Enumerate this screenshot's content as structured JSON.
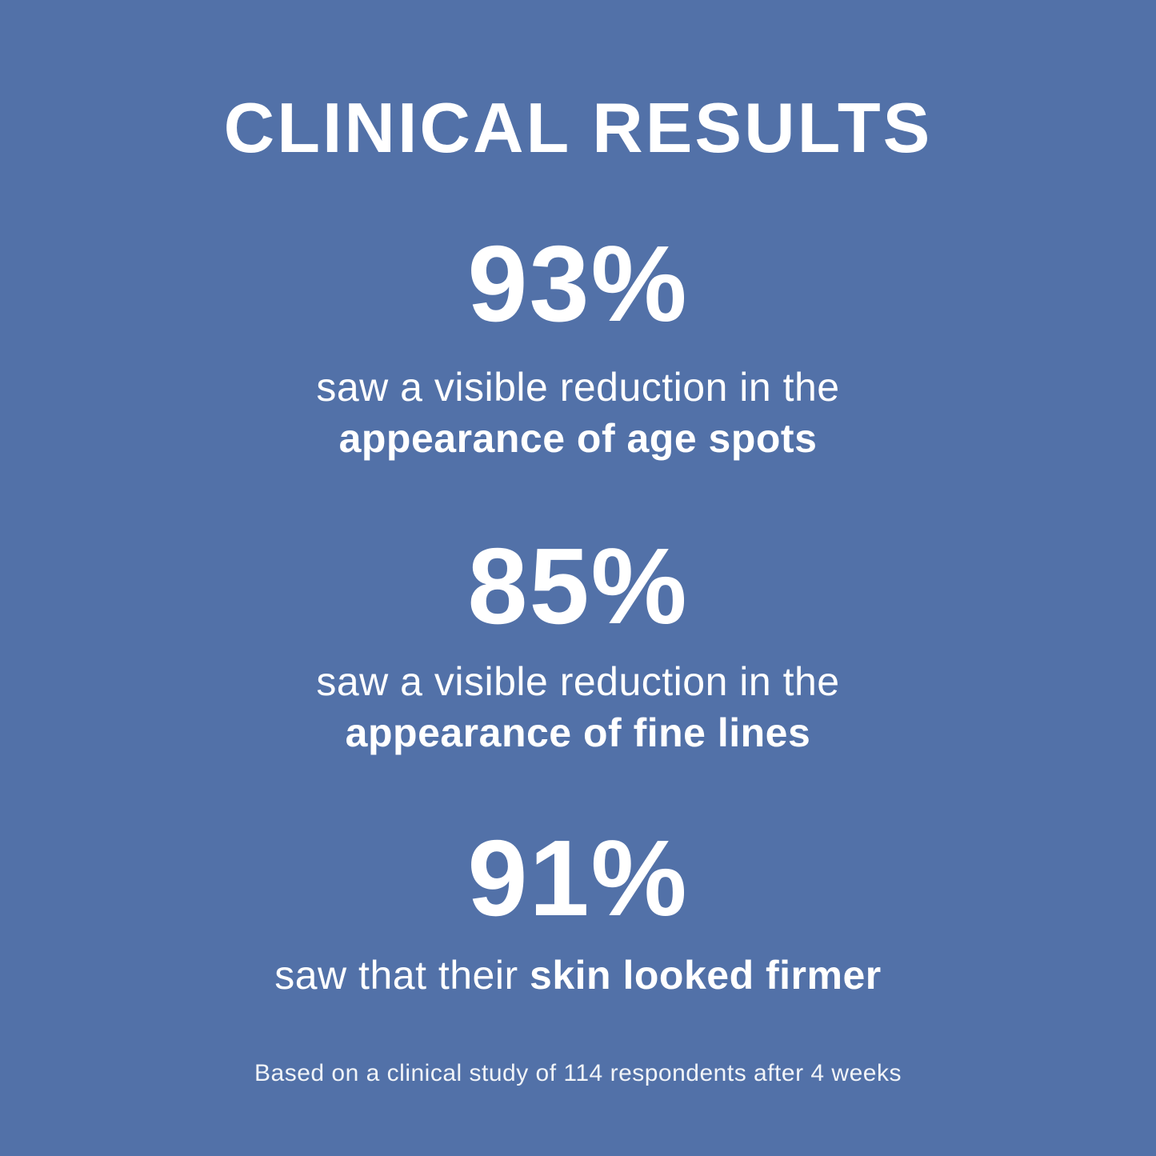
{
  "canvas": {
    "background_color": "#5271A8",
    "text_color": "#FFFFFF"
  },
  "title": "CLINICAL RESULTS",
  "stats": [
    {
      "value": "93%",
      "description_regular": "saw a visible reduction in the",
      "description_bold": "appearance of age spots"
    },
    {
      "value": "85%",
      "description_regular": "saw a visible reduction in the",
      "description_bold": "appearance of fine lines"
    },
    {
      "value": "91%",
      "description_regular": "saw that their",
      "description_bold": "skin looked firmer"
    }
  ],
  "footnote": "Based on a clinical study of 114 respondents after 4 weeks"
}
